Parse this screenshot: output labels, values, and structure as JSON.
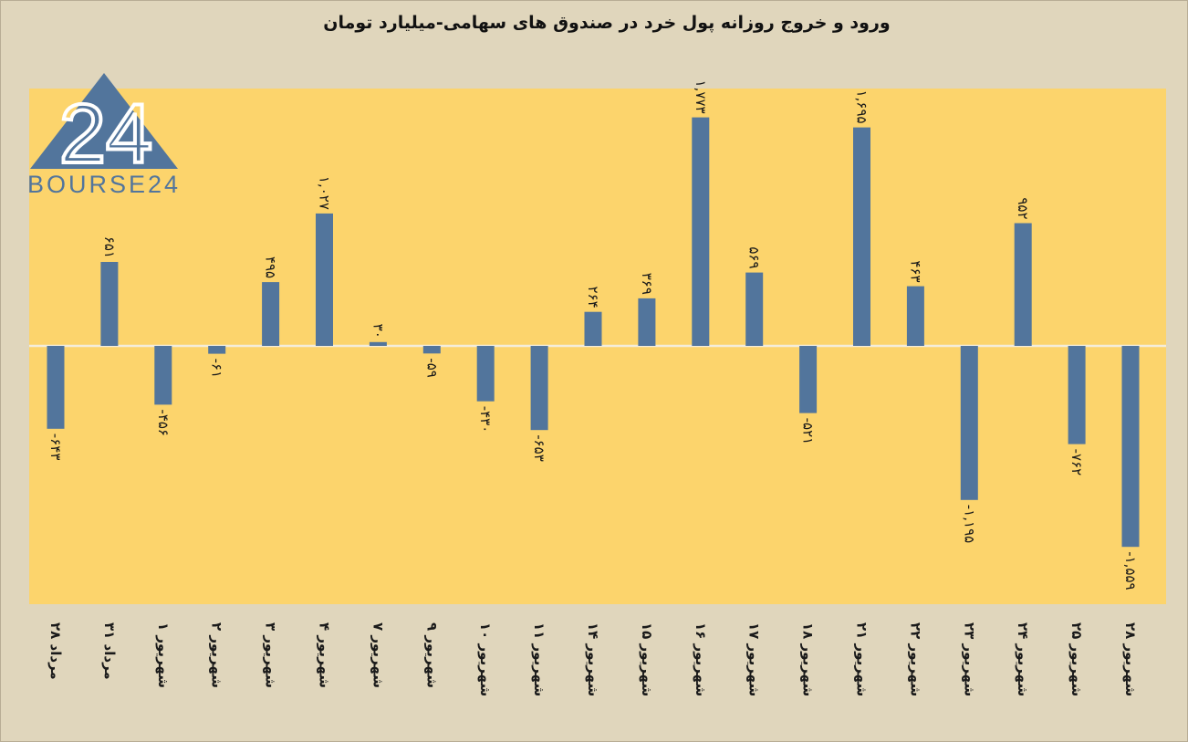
{
  "chart_data": {
    "type": "bar",
    "title": "ورود و خروج روزانه پول خرد در صندوق های سهامی-میلیارد تومان",
    "categories": [
      "۲۸ مرداد",
      "۳۱ مرداد",
      "۱ شهریور",
      "۲ شهریور",
      "۳ شهریور",
      "۴ شهریور",
      "۷ شهریور",
      "۹ شهریور",
      "۱۰ شهریور",
      "۱۱ شهریور",
      "۱۴ شهریور",
      "۱۵ شهریور",
      "۱۶ شهریور",
      "۱۷ شهریور",
      "۱۸ شهریور",
      "۲۱ شهریور",
      "۲۲ شهریور",
      "۲۳ شهریور",
      "۲۴ شهریور",
      "۲۵ شهریور",
      "۲۸ شهریور"
    ],
    "values": [
      -643,
      651,
      -456,
      -61,
      495,
      1027,
      30,
      -59,
      -430,
      -653,
      264,
      369,
      1773,
      569,
      -521,
      1695,
      463,
      -1195,
      952,
      -762,
      -1559
    ],
    "value_labels": [
      "-۶۴۳",
      "۶۵۱",
      "-۴۵۶",
      "-۶۱",
      "۴۹۵",
      "۱,۰۲۷",
      "۳۰",
      "-۵۹",
      "-۴۳۰",
      "-۶۵۳",
      "۲۶۴",
      "۳۶۹",
      "۱,۷۷۳",
      "۵۶۹",
      "-۵۲۱",
      "۱,۶۹۵",
      "۴۶۳",
      "-۱,۱۹۵",
      "۹۵۲",
      "-۷۶۲",
      "-۱,۵۵۹"
    ],
    "ylim": [
      -2000,
      2000
    ],
    "grid": false,
    "legend": "none",
    "colors": {
      "bar": "#52759c",
      "plot_bg": "#fcd46c",
      "zero_line": "#f4edda"
    }
  },
  "logo": {
    "text": "BOURSE24",
    "mark": "24",
    "color": "#52759c"
  }
}
